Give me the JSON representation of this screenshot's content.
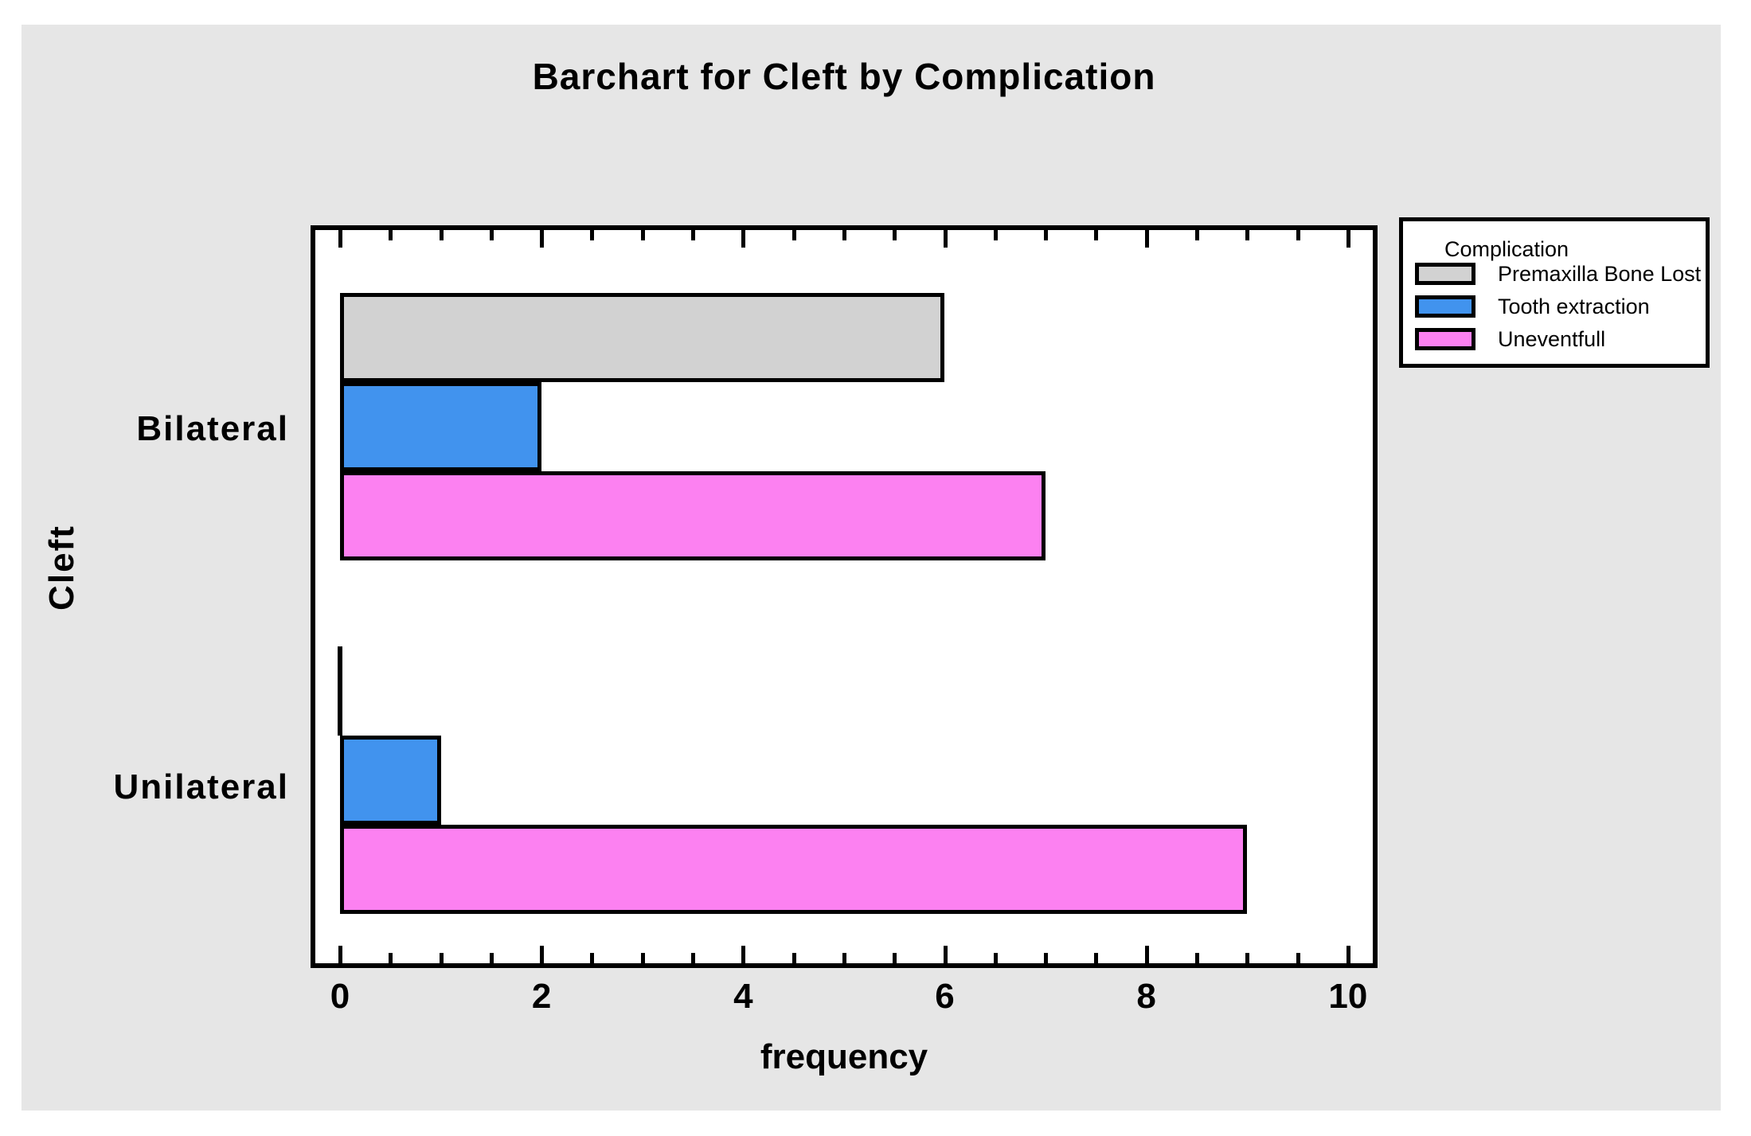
{
  "chart_data": {
    "type": "bar",
    "orientation": "horizontal",
    "title": "Barchart for Cleft by Complication",
    "xlabel": "frequency",
    "ylabel": "Cleft",
    "categories": [
      "Bilateral",
      "Unilateral"
    ],
    "series": [
      {
        "name": "Premaxilla Bone Lost",
        "color": "#d2d2d2",
        "values": [
          6,
          0
        ]
      },
      {
        "name": "Tooth extraction",
        "color": "#4193ee",
        "values": [
          2,
          1
        ]
      },
      {
        "name": "Uneventfull",
        "color": "#fc81f1",
        "values": [
          7,
          9
        ]
      }
    ],
    "xlim": [
      0,
      10
    ],
    "x_ticks": [
      "0",
      "2",
      "4",
      "6",
      "8",
      "10"
    ],
    "major_tick_step": 2,
    "minor_tick_step": 0.5,
    "legend_title": "Complication",
    "legend_position": "outside-top-right",
    "grid": false,
    "plot_background": "#ffffff",
    "canvas_background": "#e6e6e6"
  }
}
